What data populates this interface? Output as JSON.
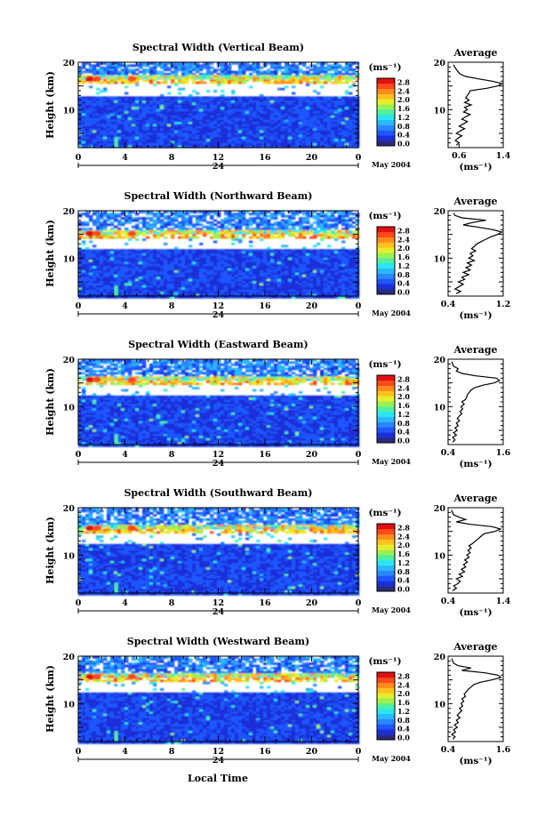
{
  "figure": {
    "date_label": "May 2004",
    "xlabel_bottom": "Local Time",
    "colorbar": {
      "label": "(ms⁻¹)",
      "ticks": [
        "0.0",
        "0.4",
        "0.8",
        "1.2",
        "1.6",
        "2.0",
        "2.4",
        "2.8"
      ],
      "colors": [
        "#2a2a7a",
        "#1a2fd8",
        "#1f56ff",
        "#2a86ff",
        "#29b8ff",
        "#2ae6f0",
        "#4ff0a0",
        "#9bf050",
        "#e6ee2a",
        "#ffc020",
        "#ff8a1a",
        "#ff4a1a",
        "#e01010"
      ]
    }
  },
  "chart_data": [
    {
      "type": "heatmap",
      "title": "Spectral Width (Vertical Beam)",
      "ylabel": "Height (km)",
      "ylim": [
        2,
        20
      ],
      "yticks": [
        "10",
        "20"
      ],
      "xlim": [
        0,
        24
      ],
      "xticks": [
        "0",
        "4",
        "8",
        "12",
        "16",
        "20",
        "0"
      ],
      "x_day_label": "24",
      "date": "May 2004",
      "colorbar_label": "(ms⁻¹)",
      "colorbar_ticks": [
        "0.0",
        "0.4",
        "0.8",
        "1.2",
        "1.6",
        "2.0",
        "2.4",
        "2.8"
      ],
      "gap_range_km": [
        13,
        15.3
      ],
      "average_profile": {
        "title": "Average",
        "xlabel": "(ms⁻¹)",
        "xlim": [
          0.4,
          1.4
        ],
        "xticks": [
          "0.6",
          "1.4"
        ],
        "ylim": [
          2,
          20
        ],
        "yticks": [
          "10",
          "20"
        ],
        "height_km": [
          2.5,
          3,
          3.5,
          4,
          4.5,
          5,
          5.5,
          6,
          6.5,
          7,
          7.5,
          8,
          8.5,
          9,
          9.5,
          10,
          10.5,
          11,
          11.5,
          12,
          12.5,
          13,
          13.5,
          14,
          14.5,
          15,
          15.5,
          16,
          16.5,
          17,
          17.5,
          18,
          18.5,
          19,
          19.5
        ],
        "width_ms": [
          0.55,
          0.6,
          0.53,
          0.58,
          0.65,
          0.55,
          0.62,
          0.7,
          0.6,
          0.68,
          0.75,
          0.65,
          0.72,
          0.8,
          0.68,
          0.75,
          0.7,
          0.82,
          0.7,
          0.78,
          0.72,
          0.75,
          0.78,
          0.8,
          1.1,
          1.3,
          1.38,
          1.2,
          0.95,
          0.72,
          0.62,
          0.58,
          0.55,
          0.52,
          0.5
        ]
      }
    },
    {
      "type": "heatmap",
      "title": "Spectral Width (Northward Beam)",
      "ylabel": "Height (km)",
      "ylim": [
        2,
        20
      ],
      "yticks": [
        "10",
        "20"
      ],
      "xlim": [
        0,
        24
      ],
      "xticks": [
        "0",
        "4",
        "8",
        "12",
        "16",
        "20",
        "0"
      ],
      "x_day_label": "24",
      "date": "May 2004",
      "colorbar_label": "(ms⁻¹)",
      "colorbar_ticks": [
        "0.0",
        "0.4",
        "0.8",
        "1.2",
        "1.6",
        "2.0",
        "2.4",
        "2.8"
      ],
      "gap_range_km": [
        12,
        14
      ],
      "average_profile": {
        "title": "Average",
        "xlabel": "(ms⁻¹)",
        "xlim": [
          0.4,
          1.2
        ],
        "xticks": [
          "0.4",
          "1.2"
        ],
        "ylim": [
          2,
          20
        ],
        "yticks": [
          "10",
          "20"
        ],
        "height_km": [
          2.5,
          3,
          3.5,
          4,
          4.5,
          5,
          5.5,
          6,
          6.5,
          7,
          7.5,
          8,
          8.5,
          9,
          9.5,
          10,
          10.5,
          11,
          11.5,
          12,
          12.5,
          13,
          13.5,
          14,
          14.5,
          15,
          15.5,
          16,
          16.5,
          17,
          17.5,
          18,
          18.5,
          19,
          19.5
        ],
        "width_ms": [
          0.52,
          0.58,
          0.5,
          0.56,
          0.62,
          0.55,
          0.64,
          0.6,
          0.7,
          0.62,
          0.72,
          0.66,
          0.74,
          0.68,
          0.78,
          0.7,
          0.76,
          0.72,
          0.8,
          0.74,
          0.78,
          0.82,
          0.88,
          0.95,
          1.02,
          1.12,
          1.18,
          1.05,
          0.85,
          0.62,
          0.75,
          0.95,
          0.6,
          0.5,
          0.48
        ]
      }
    },
    {
      "type": "heatmap",
      "title": "Spectral Width (Eastward Beam)",
      "ylabel": "Height (km)",
      "ylim": [
        2,
        20
      ],
      "yticks": [
        "10",
        "20"
      ],
      "xlim": [
        0,
        24
      ],
      "xticks": [
        "0",
        "4",
        "8",
        "12",
        "16",
        "20",
        "0"
      ],
      "x_day_label": "24",
      "date": "May 2004",
      "colorbar_label": "(ms⁻¹)",
      "colorbar_ticks": [
        "0.0",
        "0.4",
        "0.8",
        "1.2",
        "1.6",
        "2.0",
        "2.4",
        "2.8"
      ],
      "gap_range_km": [
        12.5,
        14.5
      ],
      "average_profile": {
        "title": "Average",
        "xlabel": "(ms⁻¹)",
        "xlim": [
          0.4,
          1.6
        ],
        "xticks": [
          "0.4",
          "1.6"
        ],
        "ylim": [
          2,
          20
        ],
        "yticks": [
          "10",
          "20"
        ],
        "height_km": [
          2.5,
          3,
          3.5,
          4,
          4.5,
          5,
          5.5,
          6,
          6.5,
          7,
          7.5,
          8,
          8.5,
          9,
          9.5,
          10,
          10.5,
          11,
          11.5,
          12,
          12.5,
          13,
          13.5,
          14,
          14.5,
          15,
          15.5,
          16,
          16.5,
          17,
          17.5,
          18,
          18.5,
          19,
          19.5
        ],
        "width_ms": [
          0.5,
          0.55,
          0.5,
          0.58,
          0.52,
          0.6,
          0.55,
          0.62,
          0.58,
          0.65,
          0.6,
          0.64,
          0.7,
          0.66,
          0.72,
          0.68,
          0.75,
          0.7,
          0.78,
          0.8,
          0.82,
          0.86,
          0.9,
          0.98,
          1.15,
          1.4,
          1.52,
          1.45,
          1.0,
          0.7,
          0.58,
          0.62,
          0.52,
          0.5,
          0.48
        ]
      }
    },
    {
      "type": "heatmap",
      "title": "Spectral Width (Southward Beam)",
      "ylabel": "Height (km)",
      "ylim": [
        2,
        20
      ],
      "yticks": [
        "10",
        "20"
      ],
      "xlim": [
        0,
        24
      ],
      "xticks": [
        "0",
        "4",
        "8",
        "12",
        "16",
        "20",
        "0"
      ],
      "x_day_label": "24",
      "date": "May 2004",
      "colorbar_label": "(ms⁻¹)",
      "colorbar_ticks": [
        "0.0",
        "0.4",
        "0.8",
        "1.2",
        "1.6",
        "2.0",
        "2.4",
        "2.8"
      ],
      "gap_range_km": [
        12.5,
        14.5
      ],
      "average_profile": {
        "title": "Average",
        "xlabel": "(ms⁻¹)",
        "xlim": [
          0.4,
          1.4
        ],
        "xticks": [
          "0.4",
          "1.4"
        ],
        "ylim": [
          2,
          20
        ],
        "yticks": [
          "10",
          "20"
        ],
        "height_km": [
          2.5,
          3,
          3.5,
          4,
          4.5,
          5,
          5.5,
          6,
          6.5,
          7,
          7.5,
          8,
          8.5,
          9,
          9.5,
          10,
          10.5,
          11,
          11.5,
          12,
          12.5,
          13,
          13.5,
          14,
          14.5,
          15,
          15.5,
          16,
          16.5,
          17,
          17.5,
          18,
          18.5,
          19,
          19.5
        ],
        "width_ms": [
          0.48,
          0.55,
          0.5,
          0.58,
          0.62,
          0.55,
          0.66,
          0.6,
          0.7,
          0.64,
          0.72,
          0.68,
          0.75,
          0.7,
          0.78,
          0.74,
          0.8,
          0.76,
          0.82,
          0.78,
          0.85,
          0.9,
          0.95,
          1.0,
          1.05,
          1.25,
          1.35,
          1.2,
          0.8,
          0.55,
          0.72,
          0.6,
          0.5,
          0.48,
          0.46
        ]
      }
    },
    {
      "type": "heatmap",
      "title": "Spectral Width (Westward Beam)",
      "ylabel": "Height (km)",
      "ylim": [
        2,
        20
      ],
      "yticks": [
        "10",
        "20"
      ],
      "xlim": [
        0,
        24
      ],
      "xticks": [
        "0",
        "4",
        "8",
        "12",
        "16",
        "20",
        "0"
      ],
      "x_day_label": "24",
      "date": "May 2004",
      "colorbar_label": "(ms⁻¹)",
      "colorbar_ticks": [
        "0.0",
        "0.4",
        "0.8",
        "1.2",
        "1.6",
        "2.0",
        "2.4",
        "2.8"
      ],
      "gap_range_km": [
        12.5,
        14.5
      ],
      "average_profile": {
        "title": "Average",
        "xlabel": "(ms⁻¹)",
        "xlim": [
          0.4,
          1.6
        ],
        "xticks": [
          "0.4",
          "1.6"
        ],
        "ylim": [
          2,
          20
        ],
        "yticks": [
          "10",
          "20"
        ],
        "height_km": [
          2.5,
          3,
          3.5,
          4,
          4.5,
          5,
          5.5,
          6,
          6.5,
          7,
          7.5,
          8,
          8.5,
          9,
          9.5,
          10,
          10.5,
          11,
          11.5,
          12,
          12.5,
          13,
          13.5,
          14,
          14.5,
          15,
          15.5,
          16,
          16.5,
          17,
          17.5,
          18,
          18.5,
          19,
          19.5
        ],
        "width_ms": [
          0.5,
          0.55,
          0.48,
          0.56,
          0.52,
          0.6,
          0.54,
          0.62,
          0.58,
          0.66,
          0.6,
          0.64,
          0.7,
          0.65,
          0.72,
          0.68,
          0.74,
          0.7,
          0.78,
          0.75,
          0.8,
          0.84,
          0.9,
          0.96,
          1.1,
          1.35,
          1.55,
          1.48,
          1.2,
          0.7,
          0.9,
          0.62,
          0.52,
          0.5,
          0.48
        ]
      }
    }
  ]
}
